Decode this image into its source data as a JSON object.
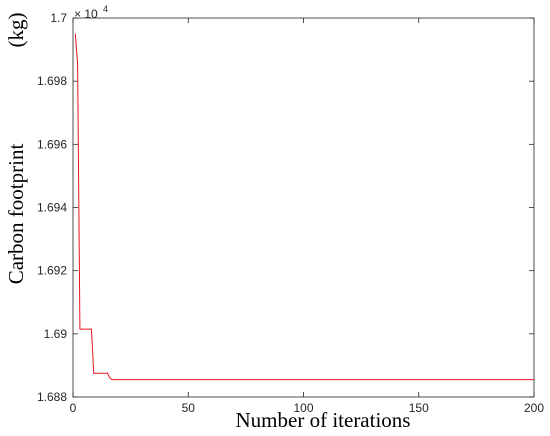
{
  "chart_data": {
    "type": "line",
    "title": "",
    "xlabel": "Number of iterations",
    "ylabel": "Carbon footprint",
    "ylabel_unit": "(kg)",
    "y_exponent_base": "× 10",
    "y_exponent_power": "4",
    "xlim": [
      0,
      200
    ],
    "ylim": [
      1.688,
      1.7
    ],
    "x_ticks": [
      0,
      50,
      100,
      150,
      200
    ],
    "x_tick_labels": [
      "0",
      "50",
      "100",
      "150",
      "200"
    ],
    "y_ticks": [
      1.688,
      1.69,
      1.692,
      1.694,
      1.696,
      1.698,
      1.7
    ],
    "y_tick_labels": [
      "1.688",
      "1.69",
      "1.692",
      "1.694",
      "1.696",
      "1.698",
      "1.7"
    ],
    "grid": false,
    "series": [
      {
        "color": "#e8141c",
        "x": [
          1,
          2,
          3,
          8,
          9,
          15,
          16,
          17,
          200
        ],
        "y": [
          1.6995,
          1.69855,
          1.69015,
          1.69015,
          1.68875,
          1.68875,
          1.6886,
          1.68855,
          1.68855
        ]
      }
    ]
  }
}
